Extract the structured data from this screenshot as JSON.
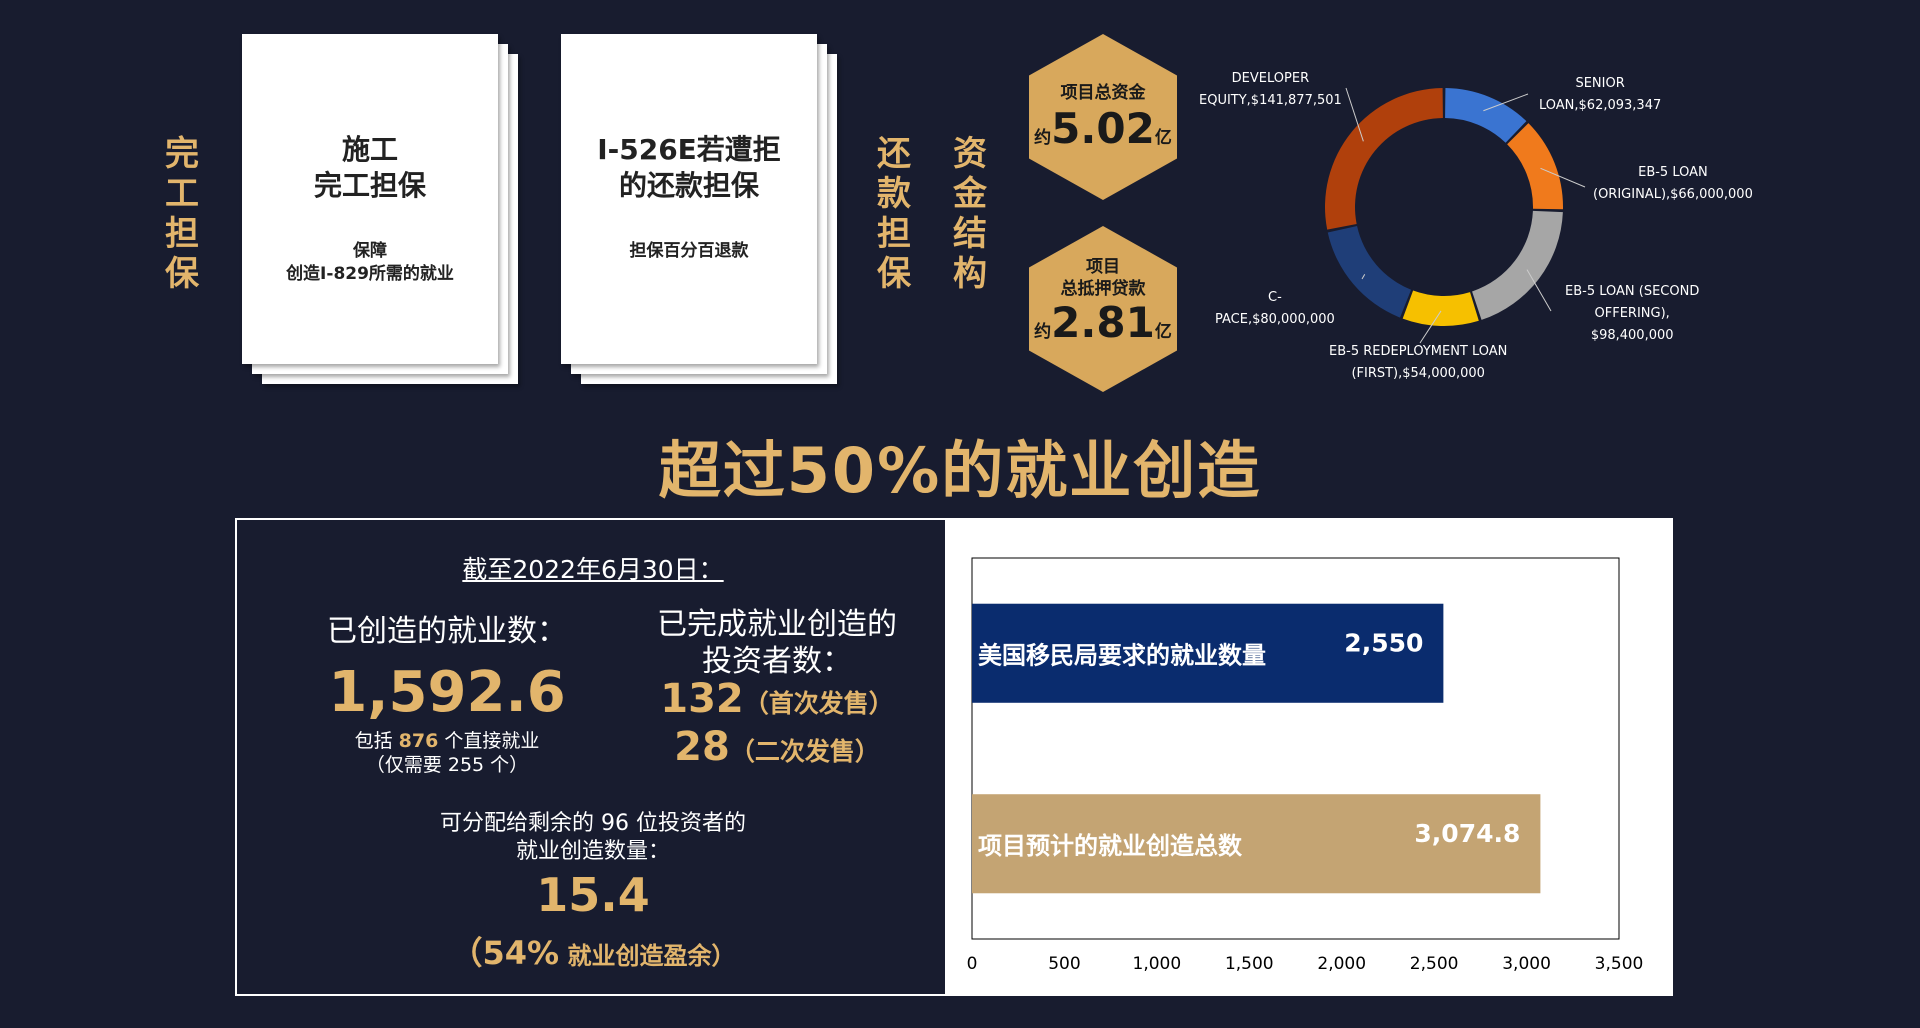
{
  "left_labels": {
    "completion_guarantee": [
      "完",
      "工",
      "担",
      "保"
    ],
    "repayment_guarantee": [
      "还",
      "款",
      "担",
      "保"
    ],
    "capital_structure": [
      "资",
      "金",
      "结",
      "构"
    ]
  },
  "cards": [
    {
      "title_lines": [
        "施工",
        "完工担保"
      ],
      "sub_lines": [
        "保障",
        "创造I-829所需的就业"
      ]
    },
    {
      "title_lines": [
        "I-526E若遭拒",
        "的还款担保"
      ],
      "sub_lines": [
        "担保百分百退款"
      ]
    }
  ],
  "hex_total": {
    "label": "项目总资金",
    "prefix": "约",
    "value": "5.02",
    "unit": "亿"
  },
  "hex_loan": {
    "label_lines": [
      "项目",
      "总抵押贷款"
    ],
    "prefix": "约",
    "value": "2.81",
    "unit": "亿"
  },
  "donut": {
    "segments": [
      {
        "label_lines": [
          "SENIOR",
          "LOAN,$62,093,347"
        ],
        "value": 62093347,
        "color": "#3a74d1"
      },
      {
        "label_lines": [
          "EB-5 LOAN",
          "(ORIGINAL),$66,000,000"
        ],
        "value": 66000000,
        "color": "#f07a1c"
      },
      {
        "label_lines": [
          "EB-5 LOAN (SECOND",
          "OFFERING),",
          "$98,400,000"
        ],
        "value": 98400000,
        "color": "#a6a6a6"
      },
      {
        "label_lines": [
          "EB-5 REDEPLOYMENT LOAN",
          "(FIRST),$54,000,000"
        ],
        "value": 54000000,
        "color": "#f6c000"
      },
      {
        "label_lines": [
          "C-",
          "PACE,$80,000,000"
        ],
        "value": 80000000,
        "color": "#1f3e78"
      },
      {
        "label_lines": [
          "DEVELOPER",
          "EQUITY,$141,877,501"
        ],
        "value": 141877501,
        "color": "#b0400c"
      }
    ]
  },
  "headline": "超过50%的就业创造",
  "stats": {
    "date_line": "截至2022年6月30日：",
    "jobs_created_label": "已创造的就业数：",
    "jobs_created_value": "1,592.6",
    "direct_pre": "包括 ",
    "direct_value": "876",
    "direct_post": " 个直接就业",
    "direct_note": "（仅需要 255 个）",
    "investors_label_lines": [
      "已完成就业创造的",
      "投资者数："
    ],
    "first_count": "132",
    "first_label": "（首次发售）",
    "second_count": "28",
    "second_label": "（二次发售）",
    "remaining_lines": [
      "可分配给剩余的 96 位投资者的",
      "就业创造数量："
    ],
    "remaining_value": "15.4",
    "surplus_pct": "（54%",
    "surplus_label": " 就业创造盈余）"
  },
  "chart_data": {
    "type": "bar",
    "orientation": "horizontal",
    "categories": [
      "美国移民局要求的就业数量",
      "项目预计的就业创造总数"
    ],
    "values": [
      2550,
      3074.8
    ],
    "value_labels": [
      "2,550",
      "3,074.8"
    ],
    "colors": [
      "#0a2c6e",
      "#c4a473"
    ],
    "xlim": [
      0,
      3500
    ],
    "xticks": [
      "0",
      "500",
      "1,000",
      "1,500",
      "2,000",
      "2,500",
      "3,000",
      "3,500"
    ],
    "grid": false,
    "legend": "none"
  }
}
